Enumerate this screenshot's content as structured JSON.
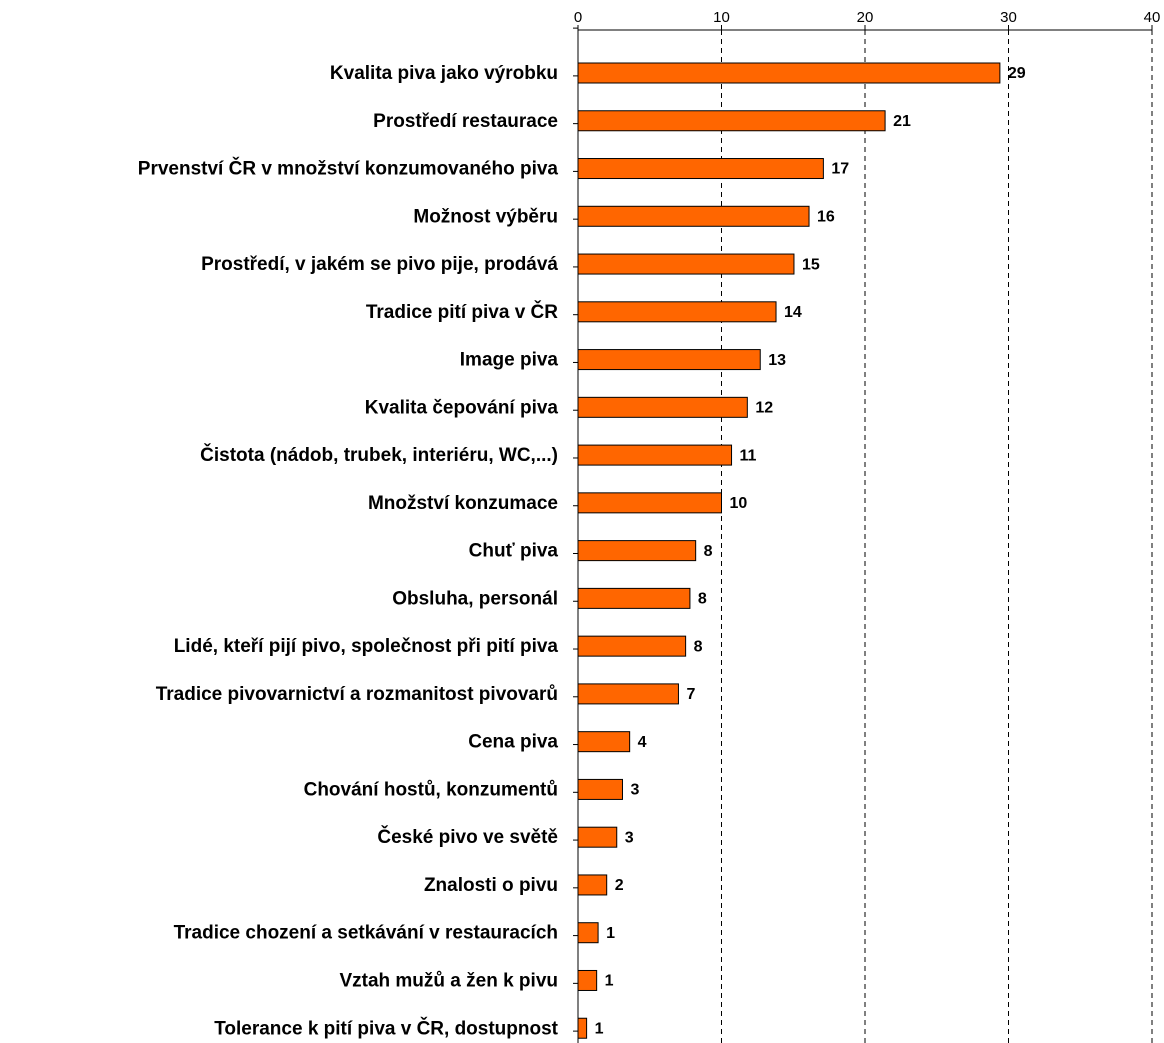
{
  "chart_data": {
    "type": "barh",
    "categories": [
      "Kvalita piva jako výrobku",
      "Prostředí restaurace",
      "Prvenství ČR v množství konzumovaného piva",
      "Možnost výběru",
      "Prostředí, v jakém se pivo pije, prodává",
      "Tradice pití piva v ČR",
      "Image piva",
      "Kvalita čepování piva",
      "Čistota (nádob, trubek, interiéru, WC,...)",
      "Množství konzumace",
      "Chuť piva",
      "Obsluha, personál",
      "Lidé, kteří pijí pivo, společnost při pití piva",
      "Tradice pivovarnictví a rozmanitost pivovarů",
      "Cena piva",
      "Chování hostů, konzumentů",
      "České pivo ve světě",
      "Znalosti o pivu",
      "Tradice chození a setkávání v restauracích",
      "Vztah mužů a žen k pivu",
      "Tolerance k pití piva v ČR, dostupnost"
    ],
    "values": [
      29.4,
      21.4,
      17.1,
      16.1,
      15.05,
      13.8,
      12.7,
      11.8,
      10.7,
      10.0,
      8.2,
      7.8,
      7.5,
      7.0,
      3.6,
      3.1,
      2.7,
      2.0,
      1.4,
      1.3,
      0.6
    ],
    "value_labels": [
      "29",
      "21",
      "17",
      "16",
      "15",
      "14",
      "13",
      "12",
      "11",
      "10",
      "8",
      "8",
      "8",
      "7",
      "4",
      "3",
      "3",
      "2",
      "1",
      "1",
      "1"
    ],
    "color": "#ff6600",
    "xlim": [
      0,
      40
    ],
    "xticks": [
      0,
      10,
      20,
      30,
      40
    ],
    "grid": true
  }
}
